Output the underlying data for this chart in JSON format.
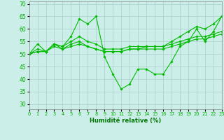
{
  "xlabel": "Humidité relative (%)",
  "xlim": [
    0,
    23
  ],
  "ylim": [
    28,
    71
  ],
  "yticks": [
    30,
    35,
    40,
    45,
    50,
    55,
    60,
    65,
    70
  ],
  "xticks": [
    0,
    1,
    2,
    3,
    4,
    5,
    6,
    7,
    8,
    9,
    10,
    11,
    12,
    13,
    14,
    15,
    16,
    17,
    18,
    19,
    20,
    21,
    22,
    23
  ],
  "background_color": "#cceee8",
  "grid_color": "#aacccc",
  "line_color": "#00bb00",
  "lines": [
    [
      50,
      54,
      51,
      54,
      53,
      57,
      64,
      62,
      65,
      49,
      42,
      36,
      38,
      44,
      44,
      42,
      42,
      47,
      53,
      55,
      60,
      55,
      59,
      65
    ],
    [
      50,
      51,
      51,
      54,
      52,
      54,
      55,
      53,
      52,
      51,
      51,
      51,
      52,
      52,
      53,
      53,
      53,
      54,
      55,
      56,
      57,
      57,
      58,
      59
    ],
    [
      50,
      51,
      51,
      53,
      52,
      53,
      54,
      53,
      52,
      51,
      51,
      51,
      52,
      52,
      52,
      52,
      52,
      53,
      54,
      55,
      56,
      56,
      57,
      58
    ],
    [
      50,
      52,
      51,
      54,
      53,
      55,
      57,
      55,
      54,
      52,
      52,
      52,
      53,
      53,
      53,
      53,
      53,
      55,
      57,
      59,
      61,
      60,
      62,
      65
    ]
  ]
}
